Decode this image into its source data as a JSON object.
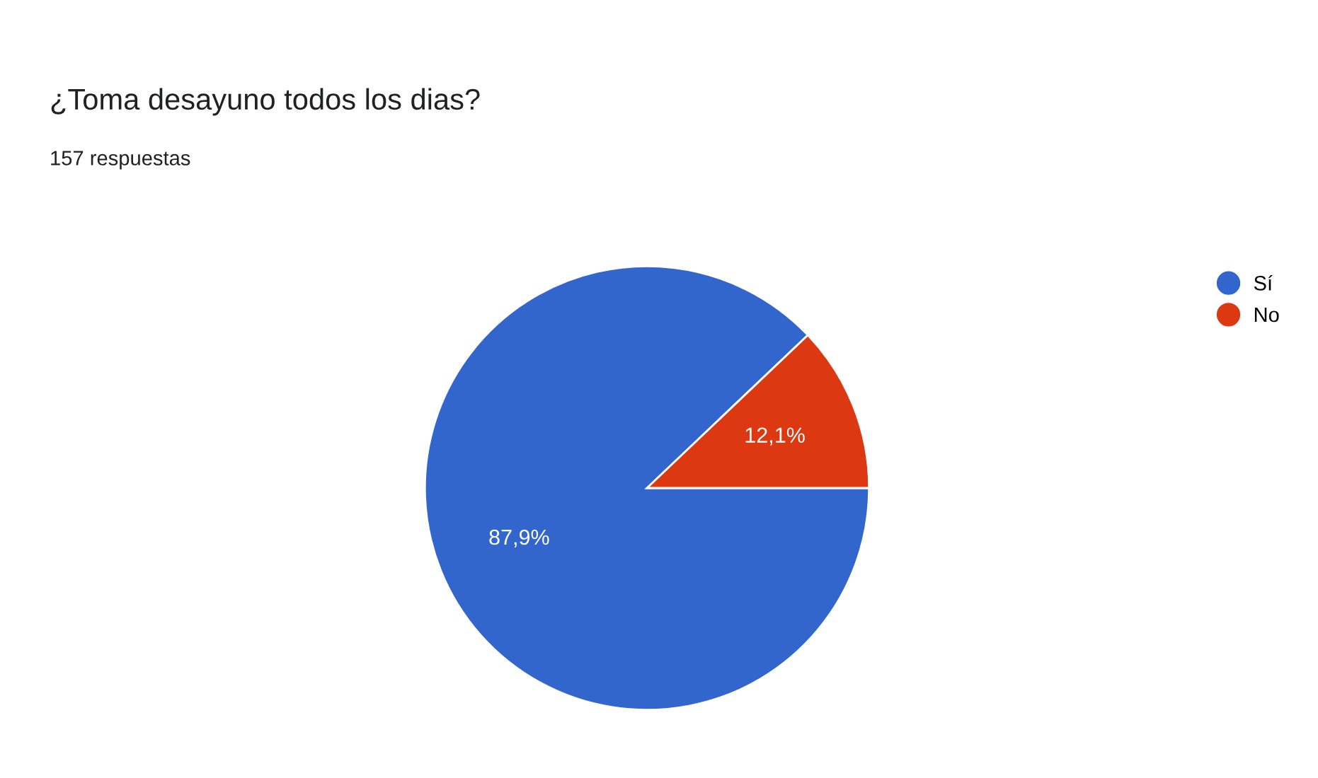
{
  "chart_data": {
    "type": "pie",
    "title": "¿Toma desayuno todos los dias?",
    "subtitle": "157 respuestas",
    "categories": [
      "Sí",
      "No"
    ],
    "values": [
      87.9,
      12.1
    ],
    "colors": [
      "#3366cc",
      "#dc3912"
    ],
    "value_labels": [
      "87,9%",
      "12,1%"
    ],
    "legend": "top right"
  }
}
